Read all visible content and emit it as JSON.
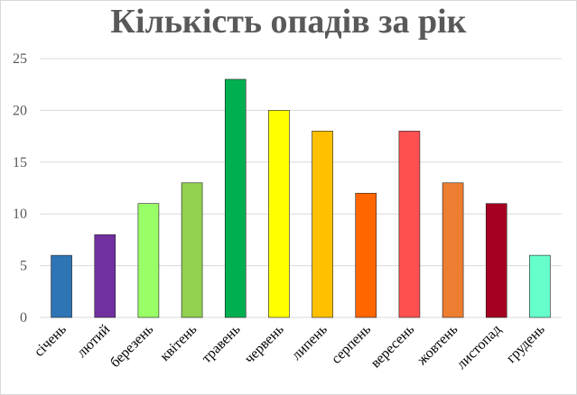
{
  "chart_data": {
    "type": "bar",
    "title": "Кількість опадів за рік",
    "xlabel": "",
    "ylabel": "",
    "ylim": [
      0,
      25
    ],
    "yticks": [
      0,
      5,
      10,
      15,
      20,
      25
    ],
    "grid": true,
    "legend": "none",
    "categories": [
      "січень",
      "лютий",
      "березень",
      "квітень",
      "травень",
      "червень",
      "липень",
      "серпень",
      "вересень",
      "жовтень",
      "листопад",
      "грудень"
    ],
    "values": [
      6,
      8,
      11,
      13,
      23,
      20,
      18,
      12,
      18,
      13,
      11,
      6
    ],
    "colors": [
      "#2e75b6",
      "#7030a0",
      "#99ff66",
      "#92d050",
      "#00b050",
      "#ffff00",
      "#ffc000",
      "#ff6600",
      "#ff5050",
      "#ed7d31",
      "#a50021",
      "#66ffcc"
    ],
    "grid_color": "#d9d9d9",
    "bar_outline_color": "#1f1f1f"
  }
}
